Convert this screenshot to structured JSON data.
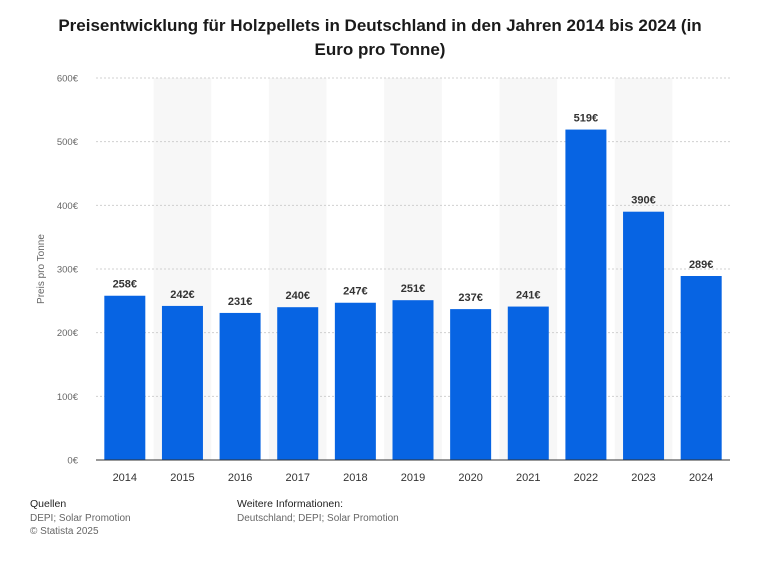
{
  "chart_data": {
    "type": "bar",
    "title": "Preisentwicklung für Holzpellets in Deutschland in den Jahren 2014 bis 2024 (in Euro pro Tonne)",
    "ylabel": "Preis pro Tonne",
    "xlabel": "",
    "categories": [
      "2014",
      "2015",
      "2016",
      "2017",
      "2018",
      "2019",
      "2020",
      "2021",
      "2022",
      "2023",
      "2024"
    ],
    "values": [
      258,
      242,
      231,
      240,
      247,
      251,
      237,
      241,
      519,
      390,
      289
    ],
    "value_labels": [
      "258€",
      "242€",
      "231€",
      "240€",
      "247€",
      "251€",
      "237€",
      "241€",
      "519€",
      "390€",
      "289€"
    ],
    "ylim": [
      0,
      600
    ],
    "yticks": [
      0,
      100,
      200,
      300,
      400,
      500,
      600
    ],
    "ytick_labels": [
      "0€",
      "100€",
      "200€",
      "300€",
      "400€",
      "500€",
      "600€"
    ],
    "grid": true,
    "bar_color": "#0764e3"
  },
  "footer": {
    "sources_heading": "Quellen",
    "sources_text": "DEPI; Solar Promotion",
    "copyright": "© Statista 2025",
    "info_heading": "Weitere Informationen:",
    "info_text": "Deutschland; DEPI; Solar Promotion"
  }
}
